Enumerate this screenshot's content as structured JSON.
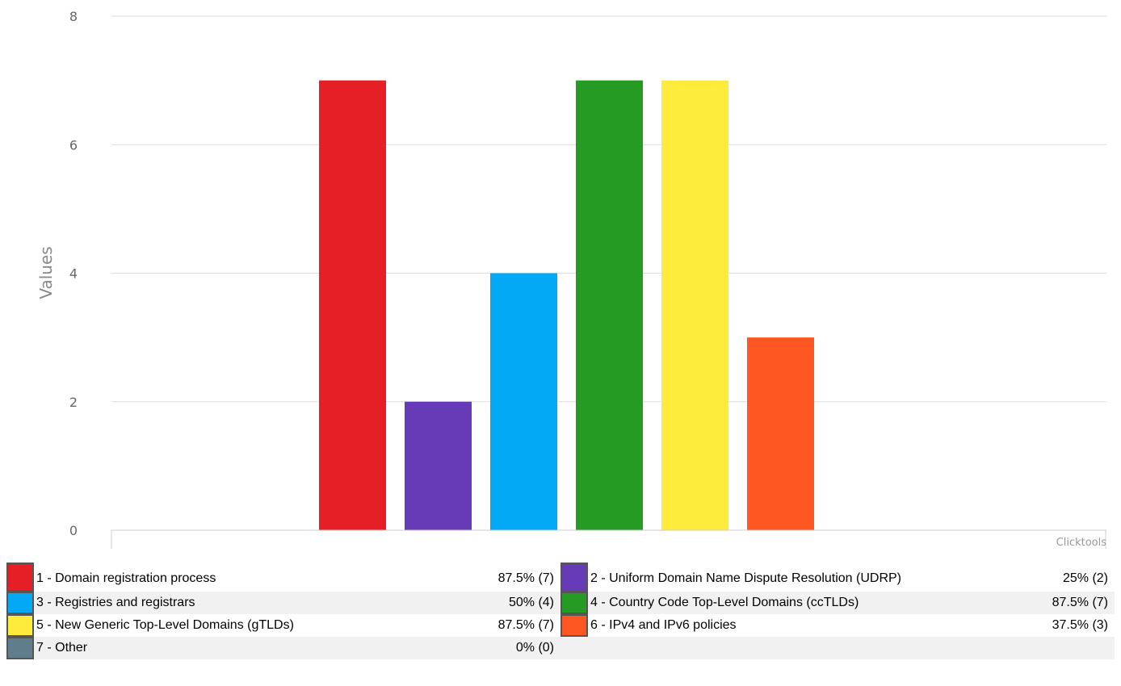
{
  "chart_data": {
    "type": "bar",
    "ylabel": "Values",
    "ylim": [
      0,
      8
    ],
    "yticks": [
      "0",
      "2",
      "4",
      "6",
      "8"
    ],
    "grid": true,
    "credit": "Clicktools",
    "categories": [
      "1 - Domain registration process",
      "2 - Uniform Domain Name Dispute Resolution (UDRP)",
      "3 - Registries and registrars",
      "4 - Country Code Top-Level Domains (ccTLDs)",
      "5 - New Generic Top-Level Domains (gTLDs)",
      "6 - IPv4 and IPv6 policies",
      "7 - Other"
    ],
    "values": [
      7,
      2,
      4,
      7,
      7,
      3,
      0
    ],
    "colors": [
      "#e51f25",
      "#673ab7",
      "#03a9f4",
      "#259b24",
      "#ffeb3b",
      "#ff5722",
      "#607d8b"
    ],
    "legend": [
      {
        "label": "1 - Domain registration process",
        "value": "87.5% (7)"
      },
      {
        "label": "2 - Uniform Domain Name Dispute Resolution (UDRP)",
        "value": "25% (2)"
      },
      {
        "label": "3 - Registries and registrars",
        "value": "50% (4)"
      },
      {
        "label": "4 - Country Code Top-Level Domains (ccTLDs)",
        "value": "87.5% (7)"
      },
      {
        "label": "5 - New Generic Top-Level Domains (gTLDs)",
        "value": "87.5% (7)"
      },
      {
        "label": "6 - IPv4 and IPv6 policies",
        "value": "37.5% (3)"
      },
      {
        "label": "7 - Other",
        "value": "0% (0)"
      }
    ]
  }
}
